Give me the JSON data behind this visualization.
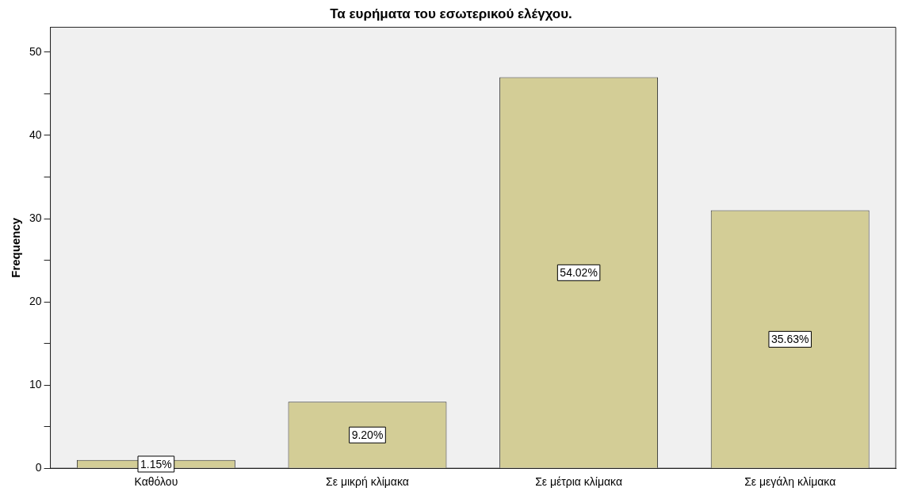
{
  "chart_data": {
    "type": "bar",
    "title": "Τα ευρήματα του εσωτερικού ελέγχου.",
    "ylabel": "Frequency",
    "categories": [
      "Καθόλου",
      "Σε μικρή κλίμακα",
      "Σε μέτρια κλίμακα",
      "Σε μεγάλη κλίμακα"
    ],
    "values": [
      1,
      8,
      47,
      31
    ],
    "annotations": [
      "1.15%",
      "9.20%",
      "54.02%",
      "35.63%"
    ],
    "color": "#d3cd96",
    "ylim": [
      0,
      53
    ],
    "yticks": [
      0,
      {
        "value": 5,
        "label": null
      },
      10,
      {
        "value": 15,
        "label": null
      },
      20,
      {
        "value": 25,
        "label": null
      },
      30,
      {
        "value": 35,
        "label": null
      },
      40,
      {
        "value": 45,
        "label": null
      },
      50
    ],
    "grid": false
  }
}
